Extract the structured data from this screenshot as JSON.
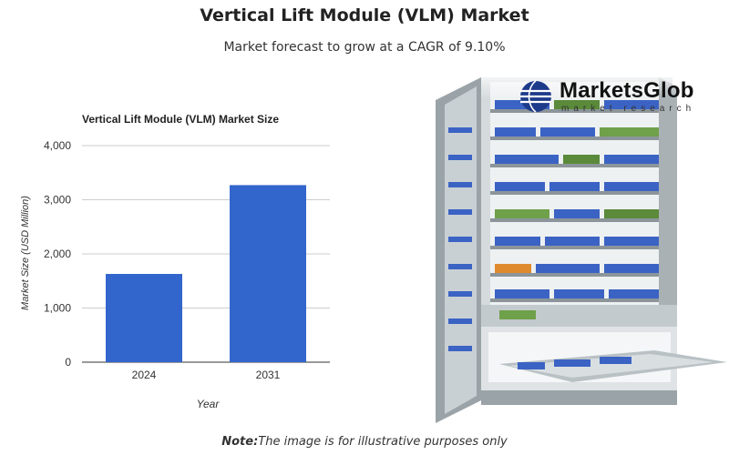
{
  "header": {
    "title": "Vertical Lift Module (VLM) Market",
    "subtitle": "Market forecast to grow at a CAGR of 9.10%"
  },
  "logo": {
    "name": "MarketsGlob",
    "tagline": "market research"
  },
  "note": {
    "prefix": "Note:",
    "text": "The image is for illustrative purposes only"
  },
  "colors": {
    "bar": "#3366cc",
    "grid": "#cccccc"
  },
  "chart_data": {
    "type": "bar",
    "title": "Vertical Lift Module (VLM) Market Size",
    "xlabel": "Year",
    "ylabel": "Market Size (USD Million)",
    "categories": [
      "2024",
      "2031"
    ],
    "values": [
      1630,
      3270
    ],
    "ylim": [
      0,
      4000
    ],
    "yticks": [
      0,
      1000,
      2000,
      3000,
      4000
    ],
    "ytick_labels": [
      "0",
      "1,000",
      "2,000",
      "3,000",
      "4,000"
    ],
    "grid": true,
    "legend": "none"
  }
}
